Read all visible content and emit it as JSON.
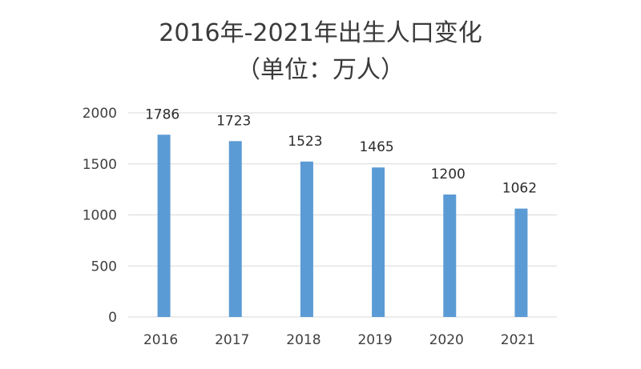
{
  "chart_data": {
    "type": "bar",
    "title_line1": "2016年-2021年出生人口变化",
    "title_line2": "（单位：万人）",
    "categories": [
      "2016",
      "2017",
      "2018",
      "2019",
      "2020",
      "2021"
    ],
    "series": [
      {
        "values": [
          1786,
          1723,
          1523,
          1465,
          1200,
          1062
        ]
      }
    ],
    "data_labels": [
      "1786",
      "1723",
      "1523",
      "1465",
      "1200",
      "1062"
    ],
    "ylim": [
      0,
      2000
    ],
    "yticks": [
      0,
      500,
      1000,
      1500,
      2000
    ],
    "ytick_labels": [
      "0",
      "500",
      "1000",
      "1500",
      "2000"
    ],
    "grid": true,
    "legend": "none",
    "colors": {
      "bar": "#5b9bd5",
      "grid": "#d9d9d9"
    }
  }
}
